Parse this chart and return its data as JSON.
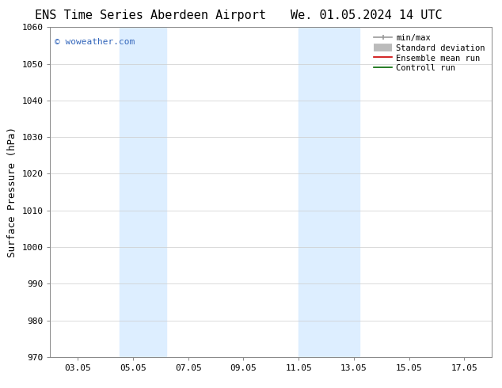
{
  "title_left": "ENS Time Series Aberdeen Airport",
  "title_right": "We. 01.05.2024 14 UTC",
  "ylabel": "Surface Pressure (hPa)",
  "ylim": [
    970,
    1060
  ],
  "yticks": [
    970,
    980,
    990,
    1000,
    1010,
    1020,
    1030,
    1040,
    1050,
    1060
  ],
  "xtick_labels": [
    "03.05",
    "05.05",
    "07.05",
    "09.05",
    "11.05",
    "13.05",
    "15.05",
    "17.05"
  ],
  "xtick_positions": [
    3,
    5,
    7,
    9,
    11,
    13,
    15,
    17
  ],
  "xlim": [
    2.0,
    18.0
  ],
  "shaded_bands": [
    {
      "xmin": 4.5,
      "xmax": 6.2,
      "color": "#ddeeff"
    },
    {
      "xmin": 11.0,
      "xmax": 13.2,
      "color": "#ddeeff"
    }
  ],
  "watermark_text": "© woweather.com",
  "watermark_color": "#3366bb",
  "legend_entries": [
    {
      "label": "min/max",
      "color": "#999999",
      "lw": 1.2
    },
    {
      "label": "Standard deviation",
      "color": "#bbbbbb",
      "lw": 7
    },
    {
      "label": "Ensemble mean run",
      "color": "#cc0000",
      "lw": 1.2
    },
    {
      "label": "Controll run",
      "color": "#006600",
      "lw": 1.2
    }
  ],
  "background_color": "#ffffff",
  "grid_color": "#cccccc",
  "title_fontsize": 11,
  "tick_label_fontsize": 8,
  "ylabel_fontsize": 9,
  "watermark_fontsize": 8,
  "legend_fontsize": 7.5
}
